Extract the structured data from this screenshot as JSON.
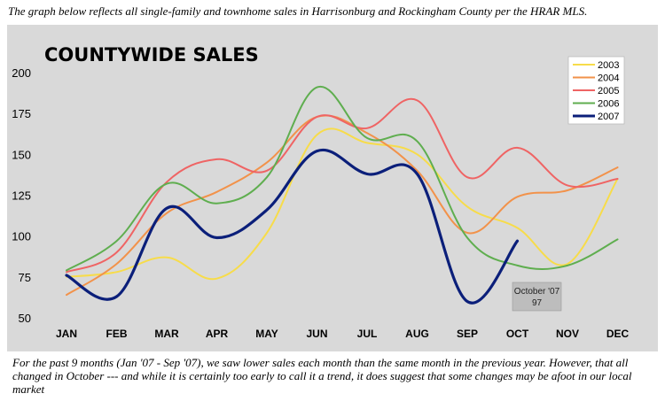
{
  "intro_text": "The graph below reflects all single-family and townhome sales in Harrisonburg and Rockingham County per the HRAR MLS.",
  "outro_text": "For the past 9 months (Jan '07 - Sep '07), we saw lower sales each month than the same month in the previous year. However, that all changed in October --- and while it is certainly too early to call it a trend, it does suggest that some changes may be afoot in our local market",
  "chart_data": {
    "type": "line",
    "title": "COUNTYWIDE SALES",
    "xlabel": "",
    "ylabel": "",
    "categories": [
      "JAN",
      "FEB",
      "MAR",
      "APR",
      "MAY",
      "JUN",
      "JUL",
      "AUG",
      "SEP",
      "OCT",
      "NOV",
      "DEC"
    ],
    "ylim": [
      50,
      200
    ],
    "yticks": [
      50,
      75,
      100,
      125,
      150,
      175,
      200
    ],
    "grid": false,
    "legend_position": "top-right",
    "series": [
      {
        "name": "2003",
        "color": "#f7dc4a",
        "values": [
          75,
          78,
          87,
          74,
          102,
          162,
          157,
          150,
          118,
          105,
          83,
          135
        ]
      },
      {
        "name": "2004",
        "color": "#f2924a",
        "values": [
          64,
          83,
          114,
          127,
          145,
          173,
          163,
          140,
          102,
          124,
          128,
          142
        ]
      },
      {
        "name": "2005",
        "color": "#ef6464",
        "values": [
          78,
          90,
          133,
          147,
          140,
          173,
          166,
          183,
          136,
          154,
          131,
          135
        ]
      },
      {
        "name": "2006",
        "color": "#5fae4f",
        "values": [
          79,
          97,
          132,
          120,
          136,
          191,
          160,
          158,
          99,
          82,
          82,
          98
        ]
      },
      {
        "name": "2007",
        "color": "#0b1f7a",
        "values": [
          76,
          63,
          117,
          99,
          116,
          152,
          138,
          138,
          60,
          97,
          null,
          null
        ]
      }
    ],
    "annotation": {
      "label": "October '07",
      "value": "97"
    }
  }
}
